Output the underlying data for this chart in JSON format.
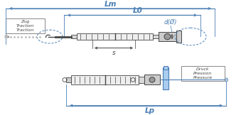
{
  "bg_color": "#ffffff",
  "blue": "#4a7fb5",
  "dark": "#444444",
  "gray": "#888888",
  "light_gray": "#bbbbbb",
  "lm_label": "Lm",
  "l0_label": "L0",
  "s_label": "s",
  "d_label": "d(Ø)",
  "lp_label": "Lp",
  "zug_label": "Zug\nTraction\nTraction",
  "druck_label": "Druck\nPression\nPressure",
  "fig_width": 3.39,
  "fig_height": 1.62,
  "dpi": 100
}
